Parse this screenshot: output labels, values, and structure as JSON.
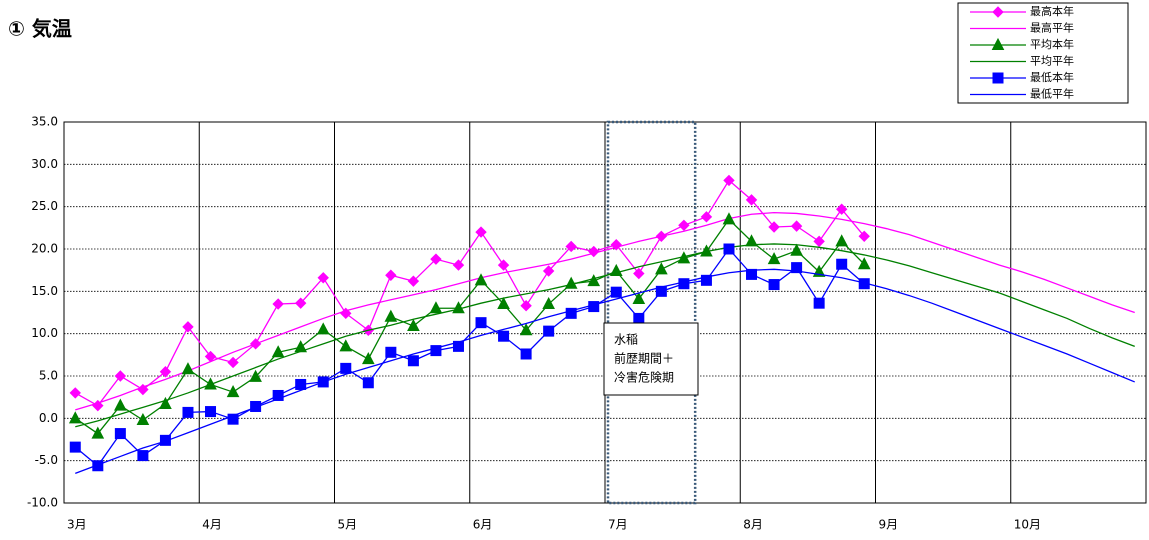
{
  "chart_data": {
    "type": "line",
    "title": "① 気温",
    "categories": [
      "3月",
      null,
      null,
      null,
      null,
      null,
      "4月",
      null,
      null,
      null,
      null,
      null,
      "5月",
      null,
      null,
      null,
      null,
      null,
      "6月",
      null,
      null,
      null,
      null,
      null,
      "7月",
      null,
      null,
      null,
      null,
      null,
      "8月",
      null,
      null,
      null,
      null,
      null,
      "9月",
      null,
      null,
      null,
      null,
      null,
      "10月",
      null,
      null,
      null,
      null,
      null
    ],
    "ylim": [
      -10,
      35
    ],
    "yticks": [
      {
        "value": -10,
        "label": "-10.0"
      },
      {
        "value": -5,
        "label": "-5.0"
      },
      {
        "value": 0,
        "label": "0.0"
      },
      {
        "value": 5,
        "label": "5.0"
      },
      {
        "value": 10,
        "label": "10.0"
      },
      {
        "value": 15,
        "label": "15.0"
      },
      {
        "value": 20,
        "label": "20.0"
      },
      {
        "value": 25,
        "label": "25.0"
      },
      {
        "value": 30,
        "label": "30.0"
      },
      {
        "value": 35,
        "label": "35.0"
      }
    ],
    "grid": true,
    "legend": "top-right",
    "annotation": [
      "水稲",
      "前歴期間＋",
      "冷害危険期"
    ],
    "series": [
      {
        "name": "最高本年",
        "color": "#ff00ff",
        "marker": "diamond",
        "values": [
          3.0,
          1.5,
          5.0,
          3.4,
          5.5,
          10.8,
          7.3,
          6.6,
          8.8,
          13.5,
          13.6,
          16.6,
          12.4,
          10.4,
          16.9,
          16.2,
          18.8,
          18.1,
          22.0,
          18.1,
          13.3,
          17.4,
          20.3,
          19.7,
          20.5,
          17.1,
          21.5,
          22.8,
          23.8,
          28.1,
          25.8,
          22.6,
          22.7,
          20.9,
          24.7,
          21.5,
          null,
          null,
          null,
          null,
          null,
          null,
          null,
          null,
          null,
          null,
          null,
          null
        ]
      },
      {
        "name": "最高平年",
        "color": "#ff00ff",
        "values": [
          1.0,
          1.8,
          2.7,
          3.7,
          4.6,
          5.6,
          6.7,
          7.8,
          8.8,
          9.8,
          10.8,
          11.8,
          12.7,
          13.4,
          14.0,
          14.6,
          15.2,
          15.9,
          16.6,
          17.2,
          17.7,
          18.2,
          18.8,
          19.5,
          20.2,
          20.9,
          21.5,
          22.1,
          22.8,
          23.6,
          24.1,
          24.3,
          24.2,
          23.9,
          23.5,
          23.0,
          22.4,
          21.7,
          20.8,
          19.9,
          19.0,
          18.1,
          17.3,
          16.4,
          15.4,
          14.4,
          13.4,
          12.5
        ]
      },
      {
        "name": "平均本年",
        "color": "#008000",
        "marker": "triangle",
        "values": [
          0.0,
          -1.8,
          1.5,
          -0.2,
          1.7,
          5.8,
          4.0,
          3.1,
          4.9,
          7.8,
          8.4,
          10.5,
          8.5,
          7.0,
          12.0,
          10.9,
          13.0,
          13.0,
          16.3,
          13.5,
          10.4,
          13.5,
          15.9,
          16.2,
          17.4,
          14.1,
          17.6,
          18.9,
          19.7,
          23.5,
          20.9,
          18.8,
          19.8,
          17.3,
          20.9,
          18.2,
          null,
          null,
          null,
          null,
          null,
          null,
          null,
          null,
          null,
          null,
          null,
          null
        ]
      },
      {
        "name": "平均平年",
        "color": "#008000",
        "values": [
          -1.0,
          -0.3,
          0.5,
          1.3,
          2.1,
          3.0,
          4.0,
          5.0,
          6.0,
          7.0,
          7.9,
          8.8,
          9.7,
          10.4,
          11.0,
          11.7,
          12.3,
          12.9,
          13.6,
          14.2,
          14.7,
          15.2,
          15.8,
          16.5,
          17.2,
          17.9,
          18.5,
          19.1,
          19.7,
          20.2,
          20.5,
          20.6,
          20.5,
          20.2,
          19.8,
          19.3,
          18.7,
          18.0,
          17.2,
          16.4,
          15.6,
          14.8,
          13.8,
          12.8,
          11.8,
          10.6,
          9.5,
          8.5
        ]
      },
      {
        "name": "最低本年",
        "color": "#0000ff",
        "marker": "square",
        "values": [
          -3.4,
          -5.6,
          -1.8,
          -4.4,
          -2.6,
          0.7,
          0.8,
          -0.1,
          1.4,
          2.7,
          4.0,
          4.3,
          5.9,
          4.2,
          7.8,
          6.8,
          8.0,
          8.5,
          11.3,
          9.7,
          7.6,
          10.3,
          12.4,
          13.2,
          14.9,
          11.8,
          15.0,
          15.9,
          16.3,
          20.0,
          17.0,
          15.8,
          17.8,
          13.6,
          18.2,
          15.9,
          null,
          null,
          null,
          null,
          null,
          null,
          null,
          null,
          null,
          null,
          null,
          null
        ]
      },
      {
        "name": "最低平年",
        "color": "#0000ff",
        "values": [
          -6.5,
          -5.5,
          -4.5,
          -3.5,
          -2.7,
          -1.7,
          -0.7,
          0.3,
          1.3,
          2.3,
          3.3,
          4.3,
          5.2,
          6.0,
          6.8,
          7.6,
          8.3,
          9.0,
          9.8,
          10.5,
          11.2,
          12.0,
          12.7,
          13.4,
          14.1,
          14.8,
          15.5,
          16.1,
          16.7,
          17.2,
          17.5,
          17.6,
          17.4,
          17.0,
          16.6,
          16.0,
          15.3,
          14.5,
          13.6,
          12.6,
          11.6,
          10.6,
          9.6,
          8.6,
          7.6,
          6.5,
          5.4,
          4.3
        ]
      }
    ]
  }
}
